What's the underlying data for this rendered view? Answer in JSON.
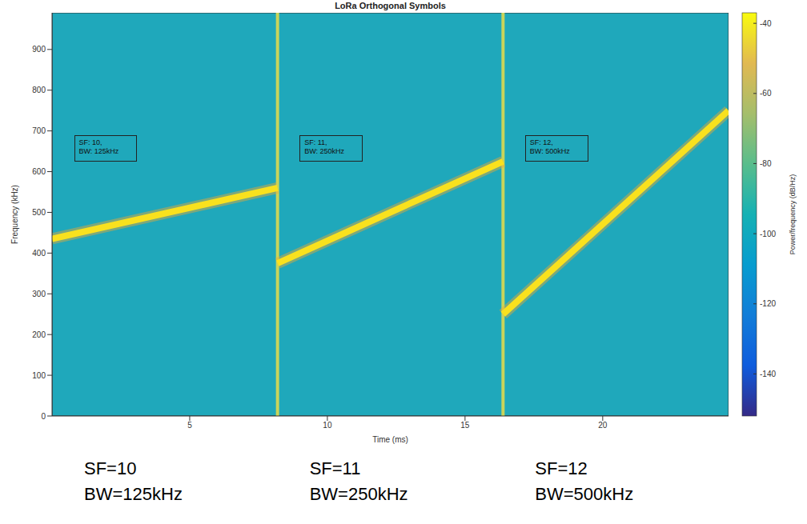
{
  "chart_data": {
    "type": "spectrogram",
    "title": "LoRa Orthogonal Symbols",
    "x_label": "Time (ms)",
    "y_label": "Frequency (kHz)",
    "xlim": [
      0,
      24.57
    ],
    "xticks": [
      5,
      10,
      15,
      20
    ],
    "ylim": [
      0,
      990
    ],
    "yticks": [
      0,
      100,
      200,
      300,
      400,
      500,
      600,
      700,
      800,
      900
    ],
    "series": [
      {
        "name": "SF: 10, BW: 125kHz",
        "color": "#f9e11e",
        "x": [
          0,
          8.19
        ],
        "values": [
          435,
          560
        ]
      },
      {
        "name": "SF: 11, BW: 250kHz",
        "color": "#f9e11e",
        "x": [
          8.19,
          16.38
        ],
        "values": [
          375,
          625
        ]
      },
      {
        "name": "SF: 12, BW: 500kHz",
        "color": "#f9e11e",
        "x": [
          16.38,
          24.57
        ],
        "values": [
          250,
          750
        ]
      }
    ],
    "symbol_boundaries": [
      8.19,
      16.38
    ],
    "colorbar": {
      "label": "Power/frequency (dB/Hz)",
      "range": [
        -152,
        -37
      ],
      "ticks": [
        -40,
        -60,
        -80,
        -100,
        -120,
        -140
      ]
    },
    "captions": [
      [
        "SF=10",
        "BW=125kHz"
      ],
      [
        "SF=11",
        "BW=250kHz"
      ],
      [
        "SF=12",
        "BW=500kHz"
      ]
    ]
  }
}
